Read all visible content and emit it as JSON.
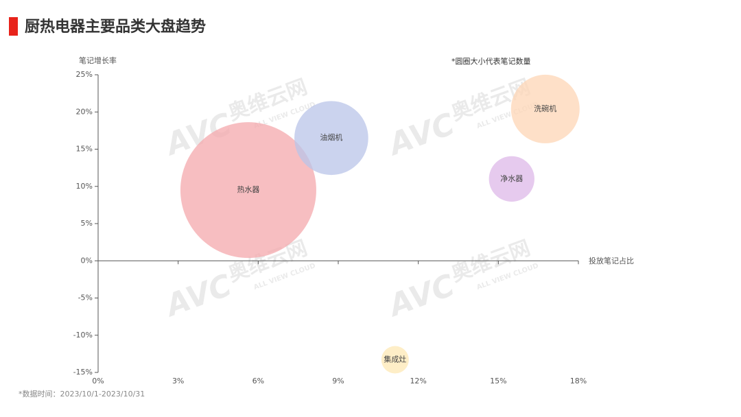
{
  "title": "厨热电器主要品类大盘趋势",
  "footnote": "*数据时间：2023/10/1-2023/10/31",
  "watermark": {
    "logo": "AVC",
    "name": "奥维云网",
    "tagline": "ALL VIEW CLOUD"
  },
  "chart_data": {
    "type": "bubble",
    "y_label": "笔记增长率",
    "x_label": "投放笔记占比",
    "annotation": "*圆圈大小代表笔记数量",
    "xlim": [
      0,
      18
    ],
    "xticks": [
      {
        "value": 0,
        "label": "0%"
      },
      {
        "value": 3,
        "label": "3%"
      },
      {
        "value": 6,
        "label": "6%"
      },
      {
        "value": 9,
        "label": "9%"
      },
      {
        "value": 12,
        "label": "12%"
      },
      {
        "value": 15,
        "label": "15%"
      },
      {
        "value": 18,
        "label": "18%"
      }
    ],
    "ylim": [
      -15,
      25
    ],
    "yticks": [
      {
        "value": -15,
        "label": "-15%"
      },
      {
        "value": -10,
        "label": "-10%"
      },
      {
        "value": -5,
        "label": "-5%"
      },
      {
        "value": 0,
        "label": "0%"
      },
      {
        "value": 5,
        "label": "5%"
      },
      {
        "value": 10,
        "label": "10%"
      },
      {
        "value": 15,
        "label": "15%"
      },
      {
        "value": 20,
        "label": "20%"
      },
      {
        "value": 25,
        "label": "25%"
      }
    ],
    "series": [
      {
        "name": "热水器",
        "color": "#f4a8ac",
        "x": 5.63,
        "y": 9.5,
        "size": 9800
      },
      {
        "name": "油烟机",
        "color": "#b9c4e8",
        "x": 8.74,
        "y": 16.5,
        "size": 2900
      },
      {
        "name": "洗碗机",
        "color": "#fdd5b6",
        "x": 16.76,
        "y": 20.4,
        "size": 2500
      },
      {
        "name": "净水器",
        "color": "#ddb8e8",
        "x": 15.5,
        "y": 11.0,
        "size": 1100
      },
      {
        "name": "集成灶",
        "color": "#fde8b4",
        "x": 11.13,
        "y": -13.3,
        "size": 400
      }
    ]
  }
}
